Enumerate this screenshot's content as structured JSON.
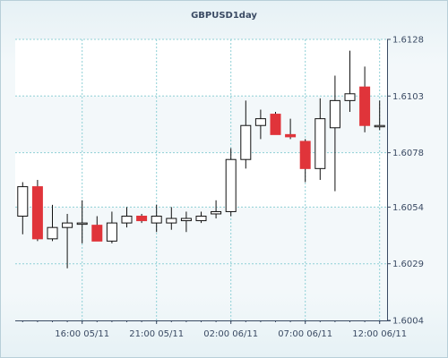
{
  "chart_data": {
    "type": "candlestick",
    "title": "GBPUSD1day",
    "y_ticks": [
      1.6004,
      1.6029,
      1.6054,
      1.6078,
      1.6103,
      1.6128
    ],
    "y_tick_labels": [
      "1.6004",
      "1.6029",
      "1.6054",
      "1.6078",
      "1.6103",
      "1.6128"
    ],
    "ylim": [
      1.6004,
      1.6128
    ],
    "x_tick_labels": [
      "16:00 05/11",
      "21:00 05/11",
      "02:00 06/11",
      "07:00 06/11",
      "12:00 06/11"
    ],
    "x_tick_positions": [
      4.5,
      9.5,
      14.5,
      19.5,
      24.5
    ],
    "grid": true,
    "bands": [
      [
        1.6054,
        1.6078
      ],
      [
        1.6103,
        1.6128
      ]
    ],
    "up_color": "#ffffff",
    "down_color": "#e0343a",
    "candles": [
      {
        "open": 1.605,
        "high": 1.6065,
        "low": 1.6042,
        "close": 1.6063
      },
      {
        "open": 1.6063,
        "high": 1.6066,
        "low": 1.6039,
        "close": 1.604
      },
      {
        "open": 1.604,
        "high": 1.6055,
        "low": 1.6039,
        "close": 1.6045
      },
      {
        "open": 1.6045,
        "high": 1.6051,
        "low": 1.6027,
        "close": 1.6047
      },
      {
        "open": 1.6047,
        "high": 1.6057,
        "low": 1.6038,
        "close": 1.6047
      },
      {
        "open": 1.6046,
        "high": 1.605,
        "low": 1.6039,
        "close": 1.6039
      },
      {
        "open": 1.6039,
        "high": 1.6052,
        "low": 1.6038,
        "close": 1.6047
      },
      {
        "open": 1.6047,
        "high": 1.6054,
        "low": 1.6045,
        "close": 1.605
      },
      {
        "open": 1.605,
        "high": 1.6051,
        "low": 1.6047,
        "close": 1.6048
      },
      {
        "open": 1.6047,
        "high": 1.6055,
        "low": 1.6043,
        "close": 1.605
      },
      {
        "open": 1.6047,
        "high": 1.6054,
        "low": 1.6044,
        "close": 1.6049
      },
      {
        "open": 1.6048,
        "high": 1.6052,
        "low": 1.6043,
        "close": 1.6049
      },
      {
        "open": 1.6048,
        "high": 1.6052,
        "low": 1.6047,
        "close": 1.605
      },
      {
        "open": 1.6051,
        "high": 1.6057,
        "low": 1.6049,
        "close": 1.6052
      },
      {
        "open": 1.6052,
        "high": 1.608,
        "low": 1.605,
        "close": 1.6075
      },
      {
        "open": 1.6075,
        "high": 1.6101,
        "low": 1.6071,
        "close": 1.609
      },
      {
        "open": 1.609,
        "high": 1.6097,
        "low": 1.6084,
        "close": 1.6093
      },
      {
        "open": 1.6095,
        "high": 1.6096,
        "low": 1.6086,
        "close": 1.6086
      },
      {
        "open": 1.6086,
        "high": 1.6093,
        "low": 1.6084,
        "close": 1.6085
      },
      {
        "open": 1.6083,
        "high": 1.6084,
        "low": 1.6065,
        "close": 1.6071
      },
      {
        "open": 1.6071,
        "high": 1.6102,
        "low": 1.6066,
        "close": 1.6093
      },
      {
        "open": 1.6089,
        "high": 1.6112,
        "low": 1.6061,
        "close": 1.6101
      },
      {
        "open": 1.6101,
        "high": 1.6123,
        "low": 1.6096,
        "close": 1.6104
      },
      {
        "open": 1.6107,
        "high": 1.6116,
        "low": 1.6087,
        "close": 1.609
      },
      {
        "open": 1.609,
        "high": 1.6101,
        "low": 1.6088,
        "close": 1.609
      }
    ]
  }
}
